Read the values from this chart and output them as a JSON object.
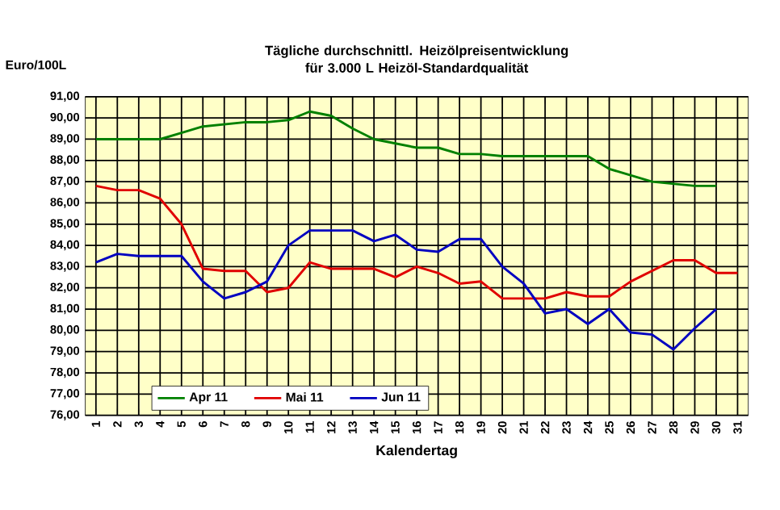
{
  "chart_data": {
    "type": "line",
    "title": "Tägliche durchschnittl. Heizölpreisentwicklung für 3.000 L Heizöl-Standardqualität",
    "xlabel": "Kalendertag",
    "ylabel": "Euro/100L",
    "categories": [
      "1",
      "2",
      "3",
      "4",
      "5",
      "6",
      "7",
      "8",
      "9",
      "10",
      "11",
      "12",
      "13",
      "14",
      "15",
      "16",
      "17",
      "18",
      "19",
      "20",
      "21",
      "22",
      "23",
      "24",
      "25",
      "26",
      "27",
      "28",
      "29",
      "30",
      "31"
    ],
    "series": [
      {
        "name": "Apr 11",
        "color": "#008000",
        "values": [
          89.0,
          89.0,
          89.0,
          89.0,
          89.3,
          89.6,
          89.7,
          89.8,
          89.8,
          89.9,
          90.3,
          90.1,
          89.5,
          89.0,
          88.8,
          88.6,
          88.6,
          88.3,
          88.3,
          88.2,
          88.2,
          88.2,
          88.2,
          88.2,
          87.6,
          87.3,
          87.0,
          86.9,
          86.8,
          86.8,
          null
        ]
      },
      {
        "name": "Mai 11",
        "color": "#e00000",
        "values": [
          86.8,
          86.6,
          86.6,
          86.2,
          85.0,
          82.9,
          82.8,
          82.8,
          81.8,
          82.0,
          83.2,
          82.9,
          82.9,
          82.9,
          82.5,
          83.0,
          82.7,
          82.2,
          82.3,
          81.5,
          81.5,
          81.5,
          81.8,
          81.6,
          81.6,
          82.3,
          82.8,
          83.3,
          83.3,
          82.7,
          82.7
        ]
      },
      {
        "name": "Jun 11",
        "color": "#0000c0",
        "values": [
          83.2,
          83.6,
          83.5,
          83.5,
          83.5,
          82.3,
          81.5,
          81.8,
          82.3,
          84.0,
          84.7,
          84.7,
          84.7,
          84.2,
          84.5,
          83.8,
          83.7,
          84.3,
          84.3,
          83.0,
          82.2,
          80.8,
          81.0,
          80.3,
          81.0,
          79.9,
          79.8,
          79.1,
          80.1,
          81.0,
          null
        ]
      }
    ],
    "ylim": [
      76,
      91
    ],
    "yticks": [
      {
        "value": 76,
        "label": "76,00"
      },
      {
        "value": 77,
        "label": "77,00"
      },
      {
        "value": 78,
        "label": "78,00"
      },
      {
        "value": 79,
        "label": "79,00"
      },
      {
        "value": 80,
        "label": "80,00"
      },
      {
        "value": 81,
        "label": "81,00"
      },
      {
        "value": 82,
        "label": "82,00"
      },
      {
        "value": 83,
        "label": "83,00"
      },
      {
        "value": 84,
        "label": "84,00"
      },
      {
        "value": 85,
        "label": "85,00"
      },
      {
        "value": 86,
        "label": "86,00"
      },
      {
        "value": 87,
        "label": "87,00"
      },
      {
        "value": 88,
        "label": "88,00"
      },
      {
        "value": 89,
        "label": "89,00"
      },
      {
        "value": 90,
        "label": "90,00"
      },
      {
        "value": 91,
        "label": "91,00"
      }
    ],
    "grid": true,
    "legend": "bottom",
    "marker": "none",
    "line_style": "solid"
  }
}
